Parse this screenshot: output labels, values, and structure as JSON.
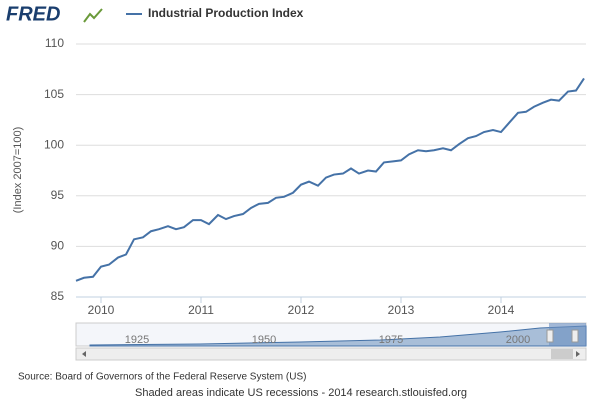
{
  "chart_data": {
    "type": "line",
    "logo": "FRED",
    "ylabel": "(Index 2007=100)",
    "source": "Source: Board of Governors of the Federal Reserve System (US)",
    "footer": "Shaded areas indicate US recessions - 2014 research.stlouisfed.org",
    "navigator_labels": [
      "1925",
      "1950",
      "1975",
      "2000"
    ],
    "grid": true,
    "series": [
      {
        "name": "Industrial Production Index",
        "color": "#4572a7",
        "x": [
          2009.75,
          2009.83,
          2009.92,
          2010.0,
          2010.08,
          2010.17,
          2010.25,
          2010.33,
          2010.42,
          2010.5,
          2010.58,
          2010.67,
          2010.75,
          2010.83,
          2010.92,
          2011.0,
          2011.08,
          2011.17,
          2011.25,
          2011.33,
          2011.42,
          2011.5,
          2011.58,
          2011.67,
          2011.75,
          2011.83,
          2011.92,
          2012.0,
          2012.08,
          2012.17,
          2012.25,
          2012.33,
          2012.42,
          2012.5,
          2012.58,
          2012.67,
          2012.75,
          2012.83,
          2012.92,
          2013.0,
          2013.08,
          2013.17,
          2013.25,
          2013.33,
          2013.42,
          2013.5,
          2013.58,
          2013.67,
          2013.75,
          2013.83,
          2013.92,
          2014.0,
          2014.08,
          2014.17,
          2014.25,
          2014.33,
          2014.42,
          2014.5,
          2014.58,
          2014.67,
          2014.75,
          2014.83
        ],
        "values": [
          86.6,
          86.9,
          87.0,
          88.0,
          88.2,
          88.9,
          89.2,
          90.7,
          90.9,
          91.5,
          91.7,
          92.0,
          91.7,
          91.9,
          92.6,
          92.6,
          92.2,
          93.1,
          92.7,
          93.0,
          93.2,
          93.8,
          94.2,
          94.3,
          94.8,
          94.9,
          95.3,
          96.1,
          96.4,
          96.0,
          96.8,
          97.1,
          97.2,
          97.7,
          97.2,
          97.5,
          97.4,
          98.3,
          98.4,
          98.5,
          99.1,
          99.5,
          99.4,
          99.5,
          99.7,
          99.5,
          100.1,
          100.7,
          100.9,
          101.3,
          101.5,
          101.3,
          102.2,
          103.2,
          103.3,
          103.8,
          104.2,
          104.5,
          104.4,
          105.3,
          105.4,
          106.6
        ]
      }
    ],
    "xlim": [
      2009.75,
      2014.85
    ],
    "xticks": [
      2010,
      2011,
      2012,
      2013,
      2014
    ],
    "ylim": [
      85,
      110
    ],
    "yticks": [
      85,
      90,
      95,
      100,
      105,
      110
    ]
  }
}
